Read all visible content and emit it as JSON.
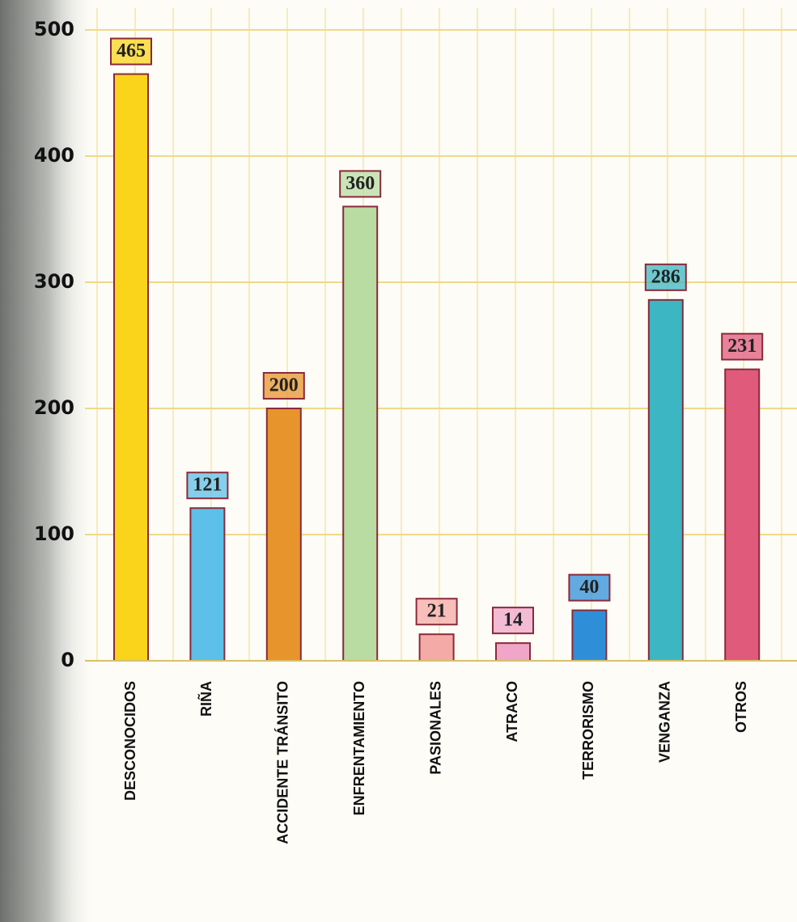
{
  "chart_data": {
    "type": "bar",
    "categories": [
      "DESCONOCIDOS",
      "RIÑA",
      "ACCIDENTE TRÁNSITO",
      "ENFRENTAMIENTO",
      "PASIONALES",
      "ATRACO",
      "TERRORISMO",
      "VENGANZA",
      "OTROS"
    ],
    "values": [
      465,
      121,
      200,
      360,
      21,
      14,
      40,
      286,
      231
    ],
    "colors": [
      "#f9d41a",
      "#5cc0e8",
      "#e8942c",
      "#b8dca2",
      "#f4aaa6",
      "#f0a6c8",
      "#2e8fd8",
      "#3cb6c2",
      "#e05a7c"
    ],
    "ylim": [
      0,
      500
    ],
    "yticks": [
      0,
      100,
      200,
      300,
      400,
      500
    ],
    "grid": true
  }
}
